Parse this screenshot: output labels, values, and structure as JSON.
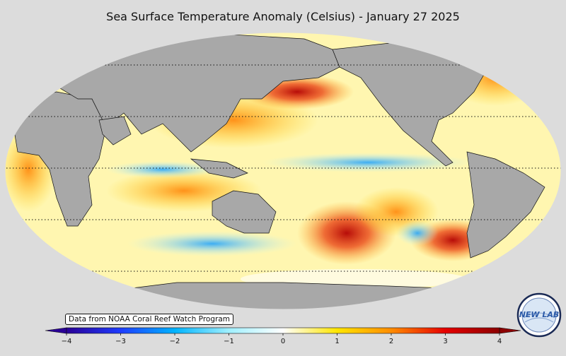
{
  "title": "Sea Surface Temperature Anomaly (Celsius) - January 27 2025",
  "source_note": "Data from NOAA Coral Reef Watch Program",
  "logo_text": "NEW LAB",
  "map": {
    "projection": "Robinson",
    "center_longitude": 150,
    "land_color": "#a8a8a8",
    "sea_ice_color": "#e6e6e6",
    "graticule": "dotted parallels"
  },
  "colorbar": {
    "min": -4,
    "max": 4,
    "ticks": [
      "−4",
      "−3",
      "−2",
      "−1",
      "0",
      "1",
      "2",
      "3",
      "4"
    ],
    "tick_values": [
      -4,
      -3,
      -2,
      -1,
      0,
      1,
      2,
      3,
      4
    ],
    "colors": [
      "#2a0096",
      "#1e3cff",
      "#00b4ff",
      "#a0f0ff",
      "#ffffff",
      "#ffe600",
      "#ff8c00",
      "#e60000",
      "#8c0000"
    ],
    "extend": "both"
  }
}
